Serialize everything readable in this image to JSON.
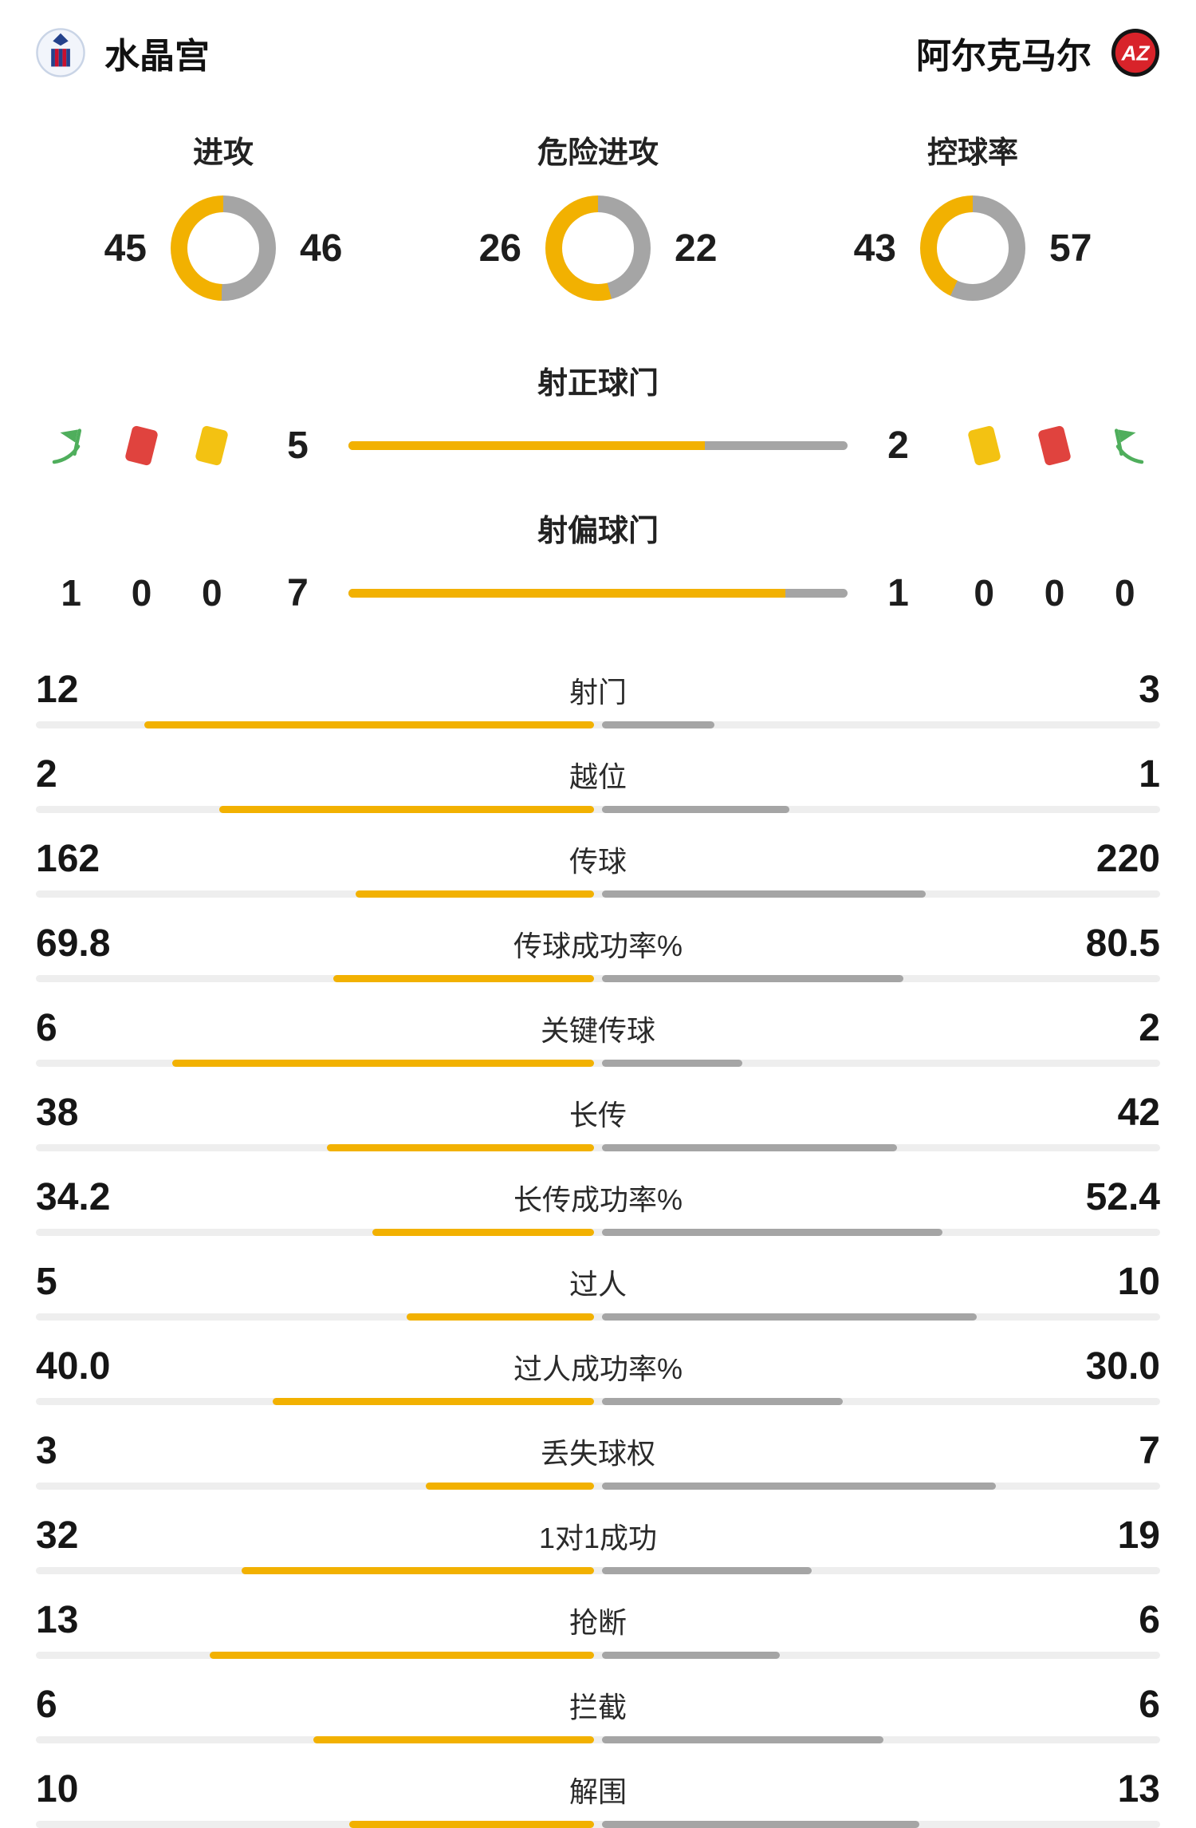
{
  "header": {
    "home": {
      "name": "水晶宫",
      "crest": "crystal-palace-crest"
    },
    "away": {
      "name": "阿尔克马尔",
      "crest": "az-alkmaar-crest",
      "crest_text": "AZ"
    }
  },
  "colors": {
    "home_bar": "#F2B101",
    "away_bar": "#A5A5A5",
    "track": "#EEEEEE",
    "red_card": "#E0433E",
    "yellow_card": "#F3C212",
    "corner_flag": "#4FAE5C"
  },
  "chart_data": {
    "type": "table",
    "teams": [
      "水晶宫",
      "阿尔克马尔"
    ],
    "donuts": [
      {
        "label": "进攻",
        "home": 45,
        "away": 46
      },
      {
        "label": "危险进攻",
        "home": 26,
        "away": 22
      },
      {
        "label": "控球率",
        "home": 43,
        "away": 57
      }
    ],
    "shot_bars": [
      {
        "label": "射正球门",
        "home": 5,
        "away": 2
      },
      {
        "label": "射偏球门",
        "home": 7,
        "away": 1
      }
    ],
    "discipline": {
      "home_icons": [
        "corner-flag-icon",
        "red-card-icon",
        "yellow-card-icon"
      ],
      "home_values": [
        1,
        0,
        0
      ],
      "away_icons": [
        "yellow-card-icon",
        "red-card-icon",
        "corner-flag-icon"
      ],
      "away_values": [
        0,
        0,
        0
      ]
    },
    "stats": [
      {
        "label": "射门",
        "home": "12",
        "away": "3"
      },
      {
        "label": "越位",
        "home": "2",
        "away": "1"
      },
      {
        "label": "传球",
        "home": "162",
        "away": "220"
      },
      {
        "label": "传球成功率%",
        "home": "69.8",
        "away": "80.5"
      },
      {
        "label": "关键传球",
        "home": "6",
        "away": "2"
      },
      {
        "label": "长传",
        "home": "38",
        "away": "42"
      },
      {
        "label": "长传成功率%",
        "home": "34.2",
        "away": "52.4"
      },
      {
        "label": "过人",
        "home": "5",
        "away": "10"
      },
      {
        "label": "过人成功率%",
        "home": "40.0",
        "away": "30.0"
      },
      {
        "label": "丢失球权",
        "home": "3",
        "away": "7"
      },
      {
        "label": "1对1成功",
        "home": "32",
        "away": "19"
      },
      {
        "label": "抢断",
        "home": "13",
        "away": "6"
      },
      {
        "label": "拦截",
        "home": "6",
        "away": "6"
      },
      {
        "label": "解围",
        "home": "10",
        "away": "13"
      }
    ]
  }
}
